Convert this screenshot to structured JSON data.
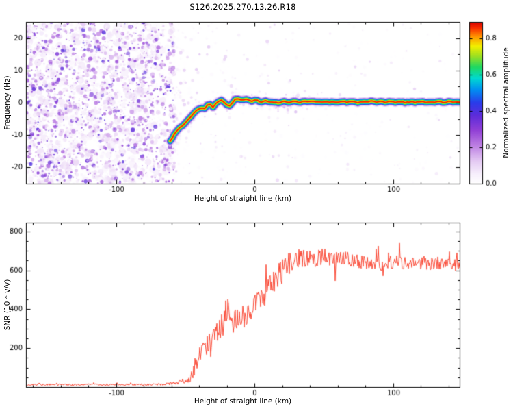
{
  "title": "S126.2025.270.13.26.R18",
  "colors": {
    "background": "#ffffff",
    "axis": "#000000",
    "snr_line": "#f93822",
    "noise_speckle": "purple shades of colormap low end"
  },
  "chart_data": [
    {
      "type": "heatmap",
      "panel": "top",
      "title": "",
      "xlabel": "Height of straight line (km)",
      "ylabel": "Frequency (Hz)",
      "xlim": [
        -165,
        148
      ],
      "ylim": [
        -25,
        25
      ],
      "xticks": [
        -100,
        0,
        100
      ],
      "xtick_minor_step": 20,
      "yticks": [
        -20,
        -10,
        0,
        10,
        20
      ],
      "ytick_minor_step": 5,
      "grid": false,
      "noise_region": {
        "xmax_km": -58,
        "description": "dense purple speckle noise (no coherent signal) left of -58 km"
      },
      "signal_trace_hz_vs_km": [
        [
          -61,
          -12
        ],
        [
          -59.5,
          -10.8
        ],
        [
          -58,
          -9.6
        ],
        [
          -56,
          -8.6
        ],
        [
          -54,
          -7.8
        ],
        [
          -52,
          -7.0
        ],
        [
          -50,
          -6.2
        ],
        [
          -48,
          -5.2
        ],
        [
          -46,
          -4.2
        ],
        [
          -44,
          -3.2
        ],
        [
          -42,
          -2.4
        ],
        [
          -40,
          -1.8
        ],
        [
          -38,
          -1.6
        ],
        [
          -36,
          -1.8
        ],
        [
          -34,
          -0.9
        ],
        [
          -32,
          -0.6
        ],
        [
          -30,
          -1.3
        ],
        [
          -28,
          -0.4
        ],
        [
          -26,
          0.4
        ],
        [
          -24,
          0.9
        ],
        [
          -22,
          0.1
        ],
        [
          -20,
          -0.9
        ],
        [
          -18,
          -0.9
        ],
        [
          -16,
          0.2
        ],
        [
          -14,
          0.9
        ],
        [
          -12,
          1.2
        ],
        [
          -10,
          0.9
        ],
        [
          -8,
          0.8
        ],
        [
          -6,
          1.0
        ],
        [
          -4,
          0.8
        ],
        [
          -2,
          0.6
        ],
        [
          0,
          0.8
        ],
        [
          2,
          0.7
        ],
        [
          5,
          0.4
        ],
        [
          8,
          0.4
        ],
        [
          11,
          0.3
        ],
        [
          14,
          0.0
        ],
        [
          17,
          0.1
        ],
        [
          20,
          0.3
        ],
        [
          24,
          0.2
        ],
        [
          28,
          0.3
        ],
        [
          33,
          0.2
        ],
        [
          38,
          0.4
        ],
        [
          44,
          0.2
        ],
        [
          50,
          0.3
        ],
        [
          57,
          0.2
        ],
        [
          65,
          0.3
        ],
        [
          73,
          0.2
        ],
        [
          82,
          0.3
        ],
        [
          91,
          0.2
        ],
        [
          100,
          0.3
        ],
        [
          110,
          0.2
        ],
        [
          120,
          0.3
        ],
        [
          130,
          0.2
        ],
        [
          140,
          0.3
        ],
        [
          148,
          0.2
        ]
      ],
      "colormap_stops": [
        [
          0.0,
          "#ffffff"
        ],
        [
          0.06,
          "#f7effc"
        ],
        [
          0.14,
          "#e4c9f3"
        ],
        [
          0.24,
          "#bb7ce2"
        ],
        [
          0.33,
          "#9140d6"
        ],
        [
          0.42,
          "#5e2cda"
        ],
        [
          0.5,
          "#2a3cea"
        ],
        [
          0.58,
          "#008ff2"
        ],
        [
          0.65,
          "#00d8d2"
        ],
        [
          0.72,
          "#1ed862"
        ],
        [
          0.79,
          "#a0e020"
        ],
        [
          0.85,
          "#f2f000"
        ],
        [
          0.91,
          "#ff9400"
        ],
        [
          0.96,
          "#f83000"
        ],
        [
          1.0,
          "#d60000"
        ]
      ],
      "colorbar": {
        "label": "Normalized spectral amplitude",
        "ticks": [
          "0.0",
          "0.2",
          "0.4",
          "0.6",
          "0.8"
        ],
        "tick_values": [
          0,
          0.2,
          0.4,
          0.6,
          0.8
        ],
        "vmax_at_top": 0.89,
        "position": "right"
      }
    },
    {
      "type": "line",
      "panel": "bottom",
      "title": "",
      "xlabel": "Height of straight line (km)",
      "ylabel": "SNR (10 * v/v)",
      "xlim": [
        -165,
        148
      ],
      "ylim": [
        0,
        845
      ],
      "xticks": [
        -100,
        0,
        100
      ],
      "xtick_minor_step": 20,
      "yticks": [
        200,
        400,
        600,
        800
      ],
      "ytick_minor_step": 50,
      "grid": false,
      "series": [
        {
          "name": "SNR",
          "color": "#f93822",
          "description": "noisy red trace: flat near ~12 until -58 km, rising transition with spikes between -45 and +25 km, noisy plateau ~630-670 beyond +25 km",
          "envelope_x_base_noise": [
            [
              -165,
              12,
              9
            ],
            [
              -155,
              12,
              9
            ],
            [
              -145,
              13,
              9
            ],
            [
              -135,
              12,
              9
            ],
            [
              -125,
              12,
              9
            ],
            [
              -115,
              13,
              9
            ],
            [
              -105,
              12,
              9
            ],
            [
              -95,
              13,
              9
            ],
            [
              -85,
              13,
              9
            ],
            [
              -75,
              13,
              10
            ],
            [
              -68,
              14,
              10
            ],
            [
              -62,
              16,
              12
            ],
            [
              -57,
              20,
              16
            ],
            [
              -52,
              26,
              20
            ],
            [
              -48,
              34,
              26
            ],
            [
              -45,
              60,
              50
            ],
            [
              -42,
              130,
              95
            ],
            [
              -40,
              200,
              100
            ],
            [
              -38,
              170,
              85
            ],
            [
              -36,
              195,
              85
            ],
            [
              -34,
              220,
              85
            ],
            [
              -31,
              250,
              90
            ],
            [
              -28,
              278,
              90
            ],
            [
              -25,
              300,
              95
            ],
            [
              -22,
              335,
              130
            ],
            [
              -20,
              430,
              170
            ],
            [
              -18,
              335,
              110
            ],
            [
              -16,
              312,
              105
            ],
            [
              -14,
              350,
              115
            ],
            [
              -12,
              335,
              105
            ],
            [
              -10,
              360,
              95
            ],
            [
              -8,
              382,
              95
            ],
            [
              -6,
              372,
              95
            ],
            [
              -4,
              392,
              95
            ],
            [
              -2,
              402,
              95
            ],
            [
              0,
              418,
              95
            ],
            [
              3,
              440,
              98
            ],
            [
              6,
              462,
              98
            ],
            [
              9,
              492,
              105
            ],
            [
              12,
              522,
              112
            ],
            [
              15,
              552,
              118
            ],
            [
              18,
              582,
              118
            ],
            [
              21,
              602,
              112
            ],
            [
              24,
              632,
              105
            ],
            [
              27,
              650,
              98
            ],
            [
              31,
              662,
              92
            ],
            [
              35,
              666,
              88
            ],
            [
              40,
              656,
              84
            ],
            [
              45,
              666,
              82
            ],
            [
              50,
              670,
              78
            ],
            [
              56,
              656,
              74
            ],
            [
              62,
              660,
              72
            ],
            [
              69,
              656,
              68
            ],
            [
              76,
              646,
              68
            ],
            [
              84,
              640,
              66
            ],
            [
              92,
              626,
              66
            ],
            [
              100,
              646,
              66
            ],
            [
              108,
              640,
              62
            ],
            [
              116,
              636,
              62
            ],
            [
              124,
              630,
              62
            ],
            [
              132,
              640,
              62
            ],
            [
              140,
              626,
              60
            ],
            [
              148,
              630,
              60
            ]
          ]
        }
      ]
    }
  ]
}
